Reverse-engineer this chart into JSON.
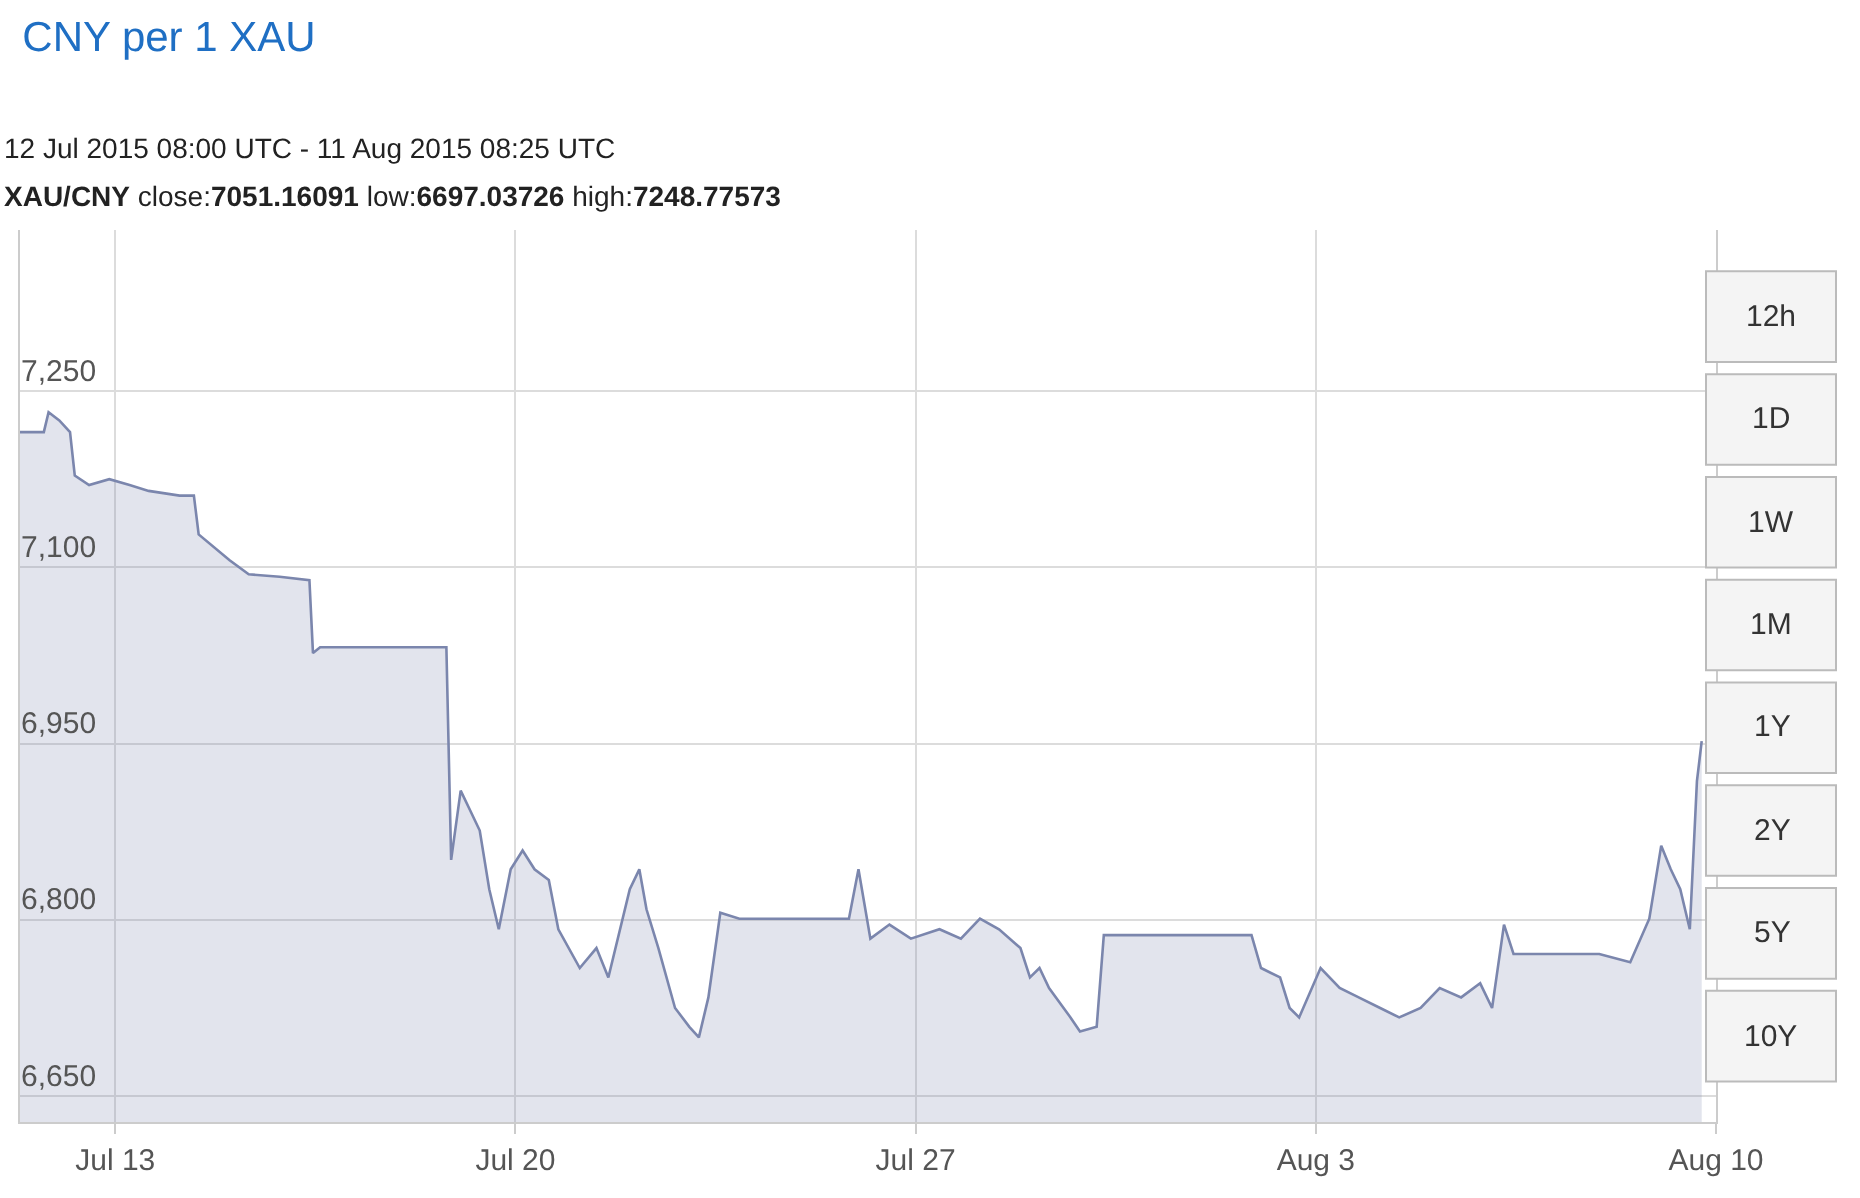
{
  "chart_data": {
    "type": "area",
    "title": "CNY per 1 XAU",
    "subtitle": "12 Jul 2015 08:00 UTC - 11 Aug 2015 08:25 UTC",
    "annotations": [
      "XAU/CNY close:7051.16091 low:6697.03726 high:7248.77573",
      "12h",
      "1D",
      "1W",
      "1M",
      "1Y",
      "2Y",
      "5Y",
      "10Y"
    ],
    "x": [
      "2015-07-11T08:00",
      "2015-07-11T18:00",
      "2015-07-11T20:00",
      "2015-07-12T00:30",
      "2015-07-12T05:00",
      "2015-07-12T07:00",
      "2015-07-12T13:00",
      "2015-07-12T21:30",
      "2015-07-13T06:00",
      "2015-07-13T14:00",
      "2015-07-14T03:00",
      "2015-07-14T09:00",
      "2015-07-14T11:00",
      "2015-07-15T00:00",
      "2015-07-15T08:00",
      "2015-07-15T21:00",
      "2015-07-16T09:30",
      "2015-07-16T11:00",
      "2015-07-16T14:00",
      "2015-07-17T15:00",
      "2015-07-18T19:00",
      "2015-07-18T21:00",
      "2015-07-19T01:00",
      "2015-07-19T05:00",
      "2015-07-19T09:00",
      "2015-07-19T13:00",
      "2015-07-19T17:00",
      "2015-07-19T22:00",
      "2015-07-20T03:00",
      "2015-07-20T08:00",
      "2015-07-20T14:00",
      "2015-07-20T18:00",
      "2015-07-21T03:00",
      "2015-07-21T10:00",
      "2015-07-21T15:00",
      "2015-07-22T00:00",
      "2015-07-22T04:00",
      "2015-07-22T07:00",
      "2015-07-22T12:00",
      "2015-07-22T19:00",
      "2015-07-23T01:00",
      "2015-07-23T05:00",
      "2015-07-23T09:00",
      "2015-07-23T14:00",
      "2015-07-23T22:00",
      "2015-07-24T23:00",
      "2015-07-25T20:00",
      "2015-07-26T00:00",
      "2015-07-26T05:00",
      "2015-07-26T13:00",
      "2015-07-26T22:00",
      "2015-07-27T10:00",
      "2015-07-27T19:00",
      "2015-07-28T03:00",
      "2015-07-28T11:00",
      "2015-07-28T20:00",
      "2015-07-29T00:00",
      "2015-07-29T04:00",
      "2015-07-29T08:00",
      "2015-07-29T17:00",
      "2015-07-29T21:00",
      "2015-07-30T04:00",
      "2015-07-30T07:00",
      "2015-07-31T23:00",
      "2015-08-01T21:00",
      "2015-08-02T01:00",
      "2015-08-02T09:00",
      "2015-08-02T13:00",
      "2015-08-02T17:00",
      "2015-08-03T02:00",
      "2015-08-03T10:00",
      "2015-08-03T18:00",
      "2015-08-04T03:00",
      "2015-08-04T11:00",
      "2015-08-04T20:00",
      "2015-08-05T04:00",
      "2015-08-05T13:00",
      "2015-08-05T21:00",
      "2015-08-06T02:00",
      "2015-08-06T07:00",
      "2015-08-06T11:00",
      "2015-08-06T14:00",
      "2015-08-07T23:00",
      "2015-08-08T12:00",
      "2015-08-08T20:00",
      "2015-08-09T01:00",
      "2015-08-09T05:00",
      "2015-08-09T09:00",
      "2015-08-09T13:00",
      "2015-08-09T16:00",
      "2015-08-09T18:00"
    ],
    "series": [
      {
        "color": "#7b86ad",
        "values": [
          7215,
          7215,
          7232,
          7225,
          7215,
          7178,
          7170,
          7175,
          7170,
          7165,
          7161,
          7161,
          7128,
          7106,
          7094,
          7092,
          7089,
          7027,
          7032,
          7032,
          7032,
          6851,
          6910,
          6893,
          6876,
          6826,
          6792,
          6843,
          6859,
          6843,
          6834,
          6792,
          6759,
          6776,
          6751,
          6826,
          6843,
          6809,
          6776,
          6725,
          6709,
          6700,
          6734,
          6806,
          6801,
          6801,
          6801,
          6843,
          6784,
          6796,
          6784,
          6792,
          6784,
          6801,
          6792,
          6776,
          6751,
          6759,
          6742,
          6717,
          6705,
          6709,
          6787,
          6787,
          6787,
          6759,
          6751,
          6725,
          6717,
          6759,
          6742,
          6734,
          6725,
          6717,
          6725,
          6742,
          6734,
          6746,
          6725,
          6796,
          6771,
          6771,
          6771,
          6764,
          6801,
          6863,
          6843,
          6826,
          6792,
          6918,
          6952
        ]
      }
    ],
    "xlim": [
      "2015-07-11T08:00",
      "2015-08-10T00:00"
    ],
    "xticks": [
      {
        "value": "2015-07-13",
        "label": "Jul 13"
      },
      {
        "value": "2015-07-20",
        "label": "Jul 20"
      },
      {
        "value": "2015-07-27",
        "label": "Jul 27"
      },
      {
        "value": "2015-08-03",
        "label": "Aug 3"
      },
      {
        "value": "2015-08-10",
        "label": "Aug 10"
      }
    ],
    "ylim": [
      6628,
      7387
    ],
    "yticks": [
      {
        "value": 6650,
        "label": "6,650"
      },
      {
        "value": 6800,
        "label": "6,800"
      },
      {
        "value": 6950,
        "label": "6,950"
      },
      {
        "value": 7100,
        "label": "7,100"
      },
      {
        "value": 7250,
        "label": "7,250"
      }
    ],
    "grid": true
  }
}
